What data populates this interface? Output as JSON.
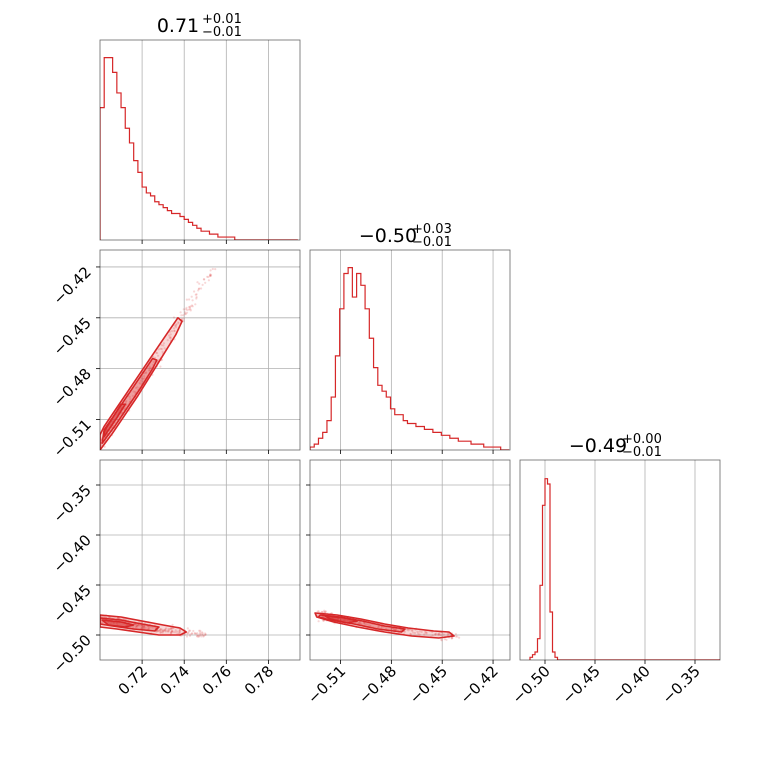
{
  "chart_data": {
    "type": "corner",
    "line_color": "#d62728",
    "grid": true,
    "parameters": [
      {
        "title_value": "0.71",
        "title_plus": "+0.01",
        "title_minus": "−0.01",
        "range": [
          0.7,
          0.795
        ],
        "ticks": [
          0.72,
          0.74,
          0.76,
          0.78
        ],
        "tick_labels": [
          "0.72",
          "0.74",
          "0.76",
          "0.78"
        ],
        "hist": {
          "edges_start": 0.7,
          "bin_width": 0.002,
          "counts": [
            45,
            62,
            62,
            57,
            50,
            45,
            38,
            33,
            27,
            23,
            18,
            16,
            15,
            13,
            12,
            11,
            10,
            9,
            9,
            8,
            7,
            6,
            5,
            4,
            3,
            3,
            2,
            2,
            1,
            1,
            1,
            1,
            0,
            0,
            0,
            0,
            0,
            0,
            0,
            0,
            0,
            0,
            0,
            0,
            0,
            0,
            0
          ],
          "ymax": 68
        }
      },
      {
        "title_value": "−0.50",
        "title_plus": "+0.03",
        "title_minus": "−0.01",
        "range": [
          -0.528,
          -0.41
        ],
        "ticks": [
          -0.51,
          -0.48,
          -0.45,
          -0.42
        ],
        "tick_labels": [
          "−0.51",
          "−0.48",
          "−0.45",
          "−0.42"
        ],
        "hist": {
          "edges_start": -0.528,
          "bin_width": 0.0025,
          "counts": [
            1,
            2,
            4,
            6,
            10,
            18,
            32,
            48,
            60,
            62,
            52,
            60,
            56,
            48,
            38,
            28,
            22,
            20,
            18,
            14,
            12,
            12,
            10,
            9,
            9,
            8,
            8,
            7,
            7,
            6,
            6,
            5,
            5,
            4,
            4,
            3,
            3,
            3,
            2,
            2,
            2,
            1,
            1,
            1,
            1,
            0,
            0
          ],
          "ymax": 68
        }
      },
      {
        "title_value": "−0.49",
        "title_plus": "+0.00",
        "title_minus": "−0.01",
        "range": [
          -0.525,
          -0.325
        ],
        "ticks": [
          -0.5,
          -0.45,
          -0.4,
          -0.35
        ],
        "tick_labels": [
          "−0.50",
          "−0.45",
          "−0.40",
          "−0.35"
        ],
        "hist": {
          "edges_start": -0.515,
          "bin_width": 0.0025,
          "counts": [
            1,
            2,
            3,
            8,
            28,
            58,
            68,
            66,
            18,
            3,
            1,
            0,
            0,
            0,
            0,
            0,
            0,
            0,
            0,
            0,
            0,
            0,
            0,
            0,
            0,
            0,
            0,
            0,
            0,
            0,
            0,
            0,
            0,
            0,
            0,
            0,
            0,
            0,
            0,
            0,
            0,
            0,
            0,
            0,
            0,
            0,
            0,
            0,
            0,
            0,
            0,
            0,
            0,
            0,
            0,
            0,
            0,
            0,
            0,
            0,
            0,
            0,
            0,
            0,
            0,
            0,
            0,
            0,
            0,
            0,
            0,
            0,
            0,
            0,
            0,
            0,
            0
          ],
          "ymax": 75
        }
      }
    ],
    "pairs": [
      {
        "x_param": 0,
        "y_param": 1,
        "samples_line": [
          [
            0.7,
            -0.525
          ],
          [
            0.706,
            -0.513
          ],
          [
            0.712,
            -0.502
          ],
          [
            0.718,
            -0.492
          ],
          [
            0.724,
            -0.48
          ],
          [
            0.73,
            -0.468
          ],
          [
            0.736,
            -0.456
          ],
          [
            0.742,
            -0.444
          ],
          [
            0.748,
            -0.432
          ],
          [
            0.754,
            -0.421
          ]
        ],
        "contours": [
          [
            [
              0.7,
              -0.528
            ],
            [
              0.706,
              -0.518
            ],
            [
              0.712,
              -0.507
            ],
            [
              0.718,
              -0.496
            ],
            [
              0.724,
              -0.484
            ],
            [
              0.73,
              -0.472
            ],
            [
              0.736,
              -0.46
            ],
            [
              0.739,
              -0.452
            ],
            [
              0.737,
              -0.45
            ],
            [
              0.732,
              -0.459
            ],
            [
              0.726,
              -0.47
            ],
            [
              0.72,
              -0.481
            ],
            [
              0.714,
              -0.492
            ],
            [
              0.708,
              -0.503
            ],
            [
              0.702,
              -0.514
            ],
            [
              0.7,
              -0.519
            ]
          ],
          [
            [
              0.701,
              -0.524
            ],
            [
              0.707,
              -0.514
            ],
            [
              0.713,
              -0.503
            ],
            [
              0.719,
              -0.492
            ],
            [
              0.725,
              -0.48
            ],
            [
              0.727,
              -0.475
            ],
            [
              0.725,
              -0.474
            ],
            [
              0.719,
              -0.485
            ],
            [
              0.713,
              -0.496
            ],
            [
              0.707,
              -0.507
            ],
            [
              0.702,
              -0.516
            ]
          ],
          [
            [
              0.702,
              -0.52
            ],
            [
              0.708,
              -0.509
            ],
            [
              0.712,
              -0.501
            ],
            [
              0.71,
              -0.501
            ],
            [
              0.705,
              -0.511
            ],
            [
              0.702,
              -0.517
            ]
          ]
        ]
      },
      {
        "x_param": 0,
        "y_param": 2,
        "samples_line": [
          [
            0.7,
            -0.483
          ],
          [
            0.71,
            -0.487
          ],
          [
            0.72,
            -0.491
          ],
          [
            0.73,
            -0.495
          ],
          [
            0.74,
            -0.498
          ],
          [
            0.75,
            -0.499
          ]
        ],
        "contours": [
          [
            [
              0.7,
              -0.48
            ],
            [
              0.71,
              -0.482
            ],
            [
              0.72,
              -0.486
            ],
            [
              0.73,
              -0.49
            ],
            [
              0.738,
              -0.493
            ],
            [
              0.741,
              -0.497
            ],
            [
              0.738,
              -0.5
            ],
            [
              0.728,
              -0.5
            ],
            [
              0.718,
              -0.497
            ],
            [
              0.708,
              -0.494
            ],
            [
              0.7,
              -0.492
            ]
          ],
          [
            [
              0.7,
              -0.483
            ],
            [
              0.71,
              -0.485
            ],
            [
              0.72,
              -0.489
            ],
            [
              0.728,
              -0.492
            ],
            [
              0.726,
              -0.496
            ],
            [
              0.716,
              -0.494
            ],
            [
              0.706,
              -0.491
            ],
            [
              0.7,
              -0.489
            ]
          ],
          [
            [
              0.701,
              -0.485
            ],
            [
              0.71,
              -0.487
            ],
            [
              0.716,
              -0.49
            ],
            [
              0.712,
              -0.492
            ],
            [
              0.704,
              -0.49
            ]
          ]
        ]
      },
      {
        "x_param": 1,
        "y_param": 2,
        "samples_line": [
          [
            -0.522,
            -0.48
          ],
          [
            -0.51,
            -0.484
          ],
          [
            -0.495,
            -0.489
          ],
          [
            -0.48,
            -0.494
          ],
          [
            -0.465,
            -0.497
          ],
          [
            -0.45,
            -0.5
          ],
          [
            -0.44,
            -0.501
          ]
        ],
        "contours": [
          [
            [
              -0.525,
              -0.478
            ],
            [
              -0.512,
              -0.48
            ],
            [
              -0.498,
              -0.484
            ],
            [
              -0.484,
              -0.489
            ],
            [
              -0.47,
              -0.493
            ],
            [
              -0.455,
              -0.496
            ],
            [
              -0.446,
              -0.497
            ],
            [
              -0.443,
              -0.501
            ],
            [
              -0.452,
              -0.503
            ],
            [
              -0.468,
              -0.501
            ],
            [
              -0.484,
              -0.497
            ],
            [
              -0.5,
              -0.492
            ],
            [
              -0.514,
              -0.487
            ],
            [
              -0.524,
              -0.482
            ]
          ],
          [
            [
              -0.522,
              -0.48
            ],
            [
              -0.51,
              -0.482
            ],
            [
              -0.497,
              -0.486
            ],
            [
              -0.484,
              -0.491
            ],
            [
              -0.472,
              -0.494
            ],
            [
              -0.474,
              -0.497
            ],
            [
              -0.488,
              -0.494
            ],
            [
              -0.502,
              -0.489
            ],
            [
              -0.516,
              -0.485
            ],
            [
              -0.523,
              -0.482
            ]
          ],
          [
            [
              -0.519,
              -0.481
            ],
            [
              -0.508,
              -0.483
            ],
            [
              -0.5,
              -0.486
            ],
            [
              -0.506,
              -0.488
            ],
            [
              -0.516,
              -0.484
            ]
          ]
        ]
      }
    ]
  }
}
